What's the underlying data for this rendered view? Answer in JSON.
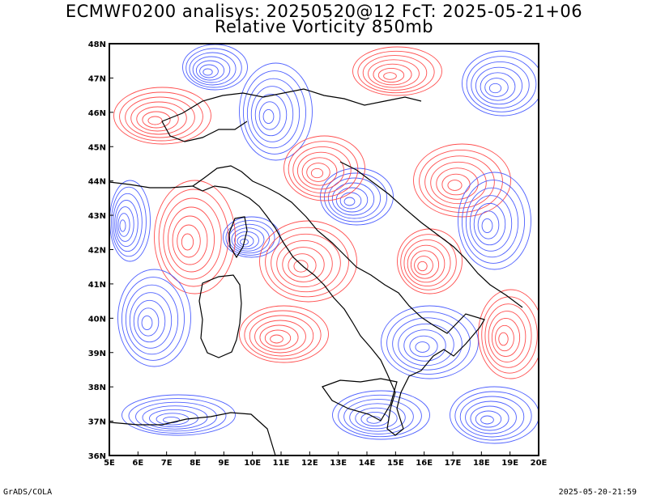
{
  "title_line_1": "ECMWF0200 analisys: 20250520@12 FcT: 2025-05-21+06",
  "title_line_2": "Relative Vorticity 850mb",
  "footer_left": "GrADS/COLA",
  "footer_right": "2025-05-20-21:59",
  "map": {
    "lon_range": [
      5,
      20
    ],
    "lat_range": [
      36,
      48
    ],
    "x_ticks": [
      "5E",
      "6E",
      "7E",
      "8E",
      "9E",
      "10E",
      "11E",
      "12E",
      "13E",
      "14E",
      "15E",
      "16E",
      "17E",
      "18E",
      "19E",
      "20E"
    ],
    "y_ticks": [
      "36N",
      "37N",
      "38N",
      "39N",
      "40N",
      "41N",
      "42N",
      "43N",
      "44N",
      "45N",
      "46N",
      "47N",
      "48N"
    ],
    "colors": {
      "positive": "#ff3c3c",
      "negative": "#3c50ff",
      "coastline": "#000000"
    }
  }
}
